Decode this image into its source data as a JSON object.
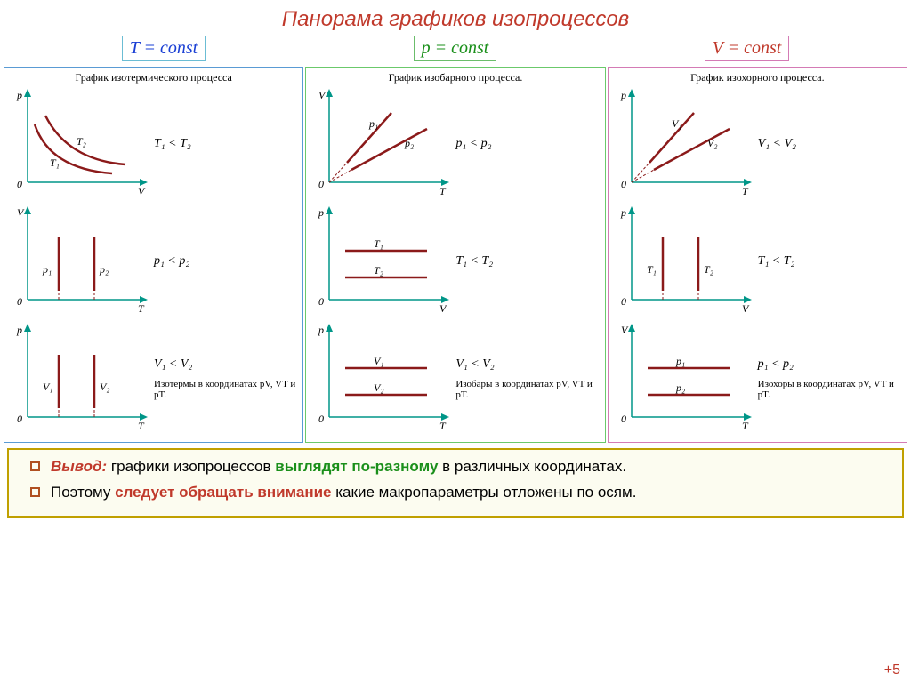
{
  "title": "Панорама графиков изопроцессов",
  "formulas": [
    {
      "text": "T = const",
      "color": "#1a3fd4",
      "border": "#6bbdd4"
    },
    {
      "text": "p = const",
      "color": "#1a8f1a",
      "border": "#6bbd6b"
    },
    {
      "text": "V = const",
      "color": "#c0392b",
      "border": "#d47bb5"
    }
  ],
  "panels": [
    {
      "border": "#5a9bd4",
      "title": "График изотермического процесса",
      "graphs": [
        {
          "y": "p",
          "x": "V",
          "type": "hyperbola",
          "labels": [
            "T₁",
            "T₂"
          ],
          "cond": "T₁ < T₂"
        },
        {
          "y": "V",
          "x": "T",
          "type": "vertical",
          "labels": [
            "p₁",
            "p₂"
          ],
          "cond": "p₁ < p₂"
        },
        {
          "y": "p",
          "x": "T",
          "type": "vertical",
          "labels": [
            "V₁",
            "V₂"
          ],
          "cond": "V₁ < V₂"
        }
      ],
      "caption": "Изотермы в координатах pV, VT и pT."
    },
    {
      "border": "#6bc96b",
      "title": "График изобарного процесса.",
      "graphs": [
        {
          "y": "V",
          "x": "T",
          "type": "rays",
          "labels": [
            "p₁",
            "p₂"
          ],
          "cond": "p₁ < p₂"
        },
        {
          "y": "p",
          "x": "V",
          "type": "horizontal",
          "labels": [
            "T₁",
            "T₂"
          ],
          "cond": "T₁ < T₂"
        },
        {
          "y": "p",
          "x": "T",
          "type": "horizontal",
          "labels": [
            "V₁",
            "V₂"
          ],
          "cond": "V₁ < V₂"
        }
      ],
      "caption": "Изобары в координатах pV, VT и pT."
    },
    {
      "border": "#d47bb5",
      "title": "График изохорного процесса.",
      "graphs": [
        {
          "y": "p",
          "x": "T",
          "type": "rays",
          "labels": [
            "V₁",
            "V₂"
          ],
          "cond": "V₁ < V₂"
        },
        {
          "y": "p",
          "x": "V",
          "type": "vertical",
          "labels": [
            "T₁",
            "T₂"
          ],
          "cond": "T₁ < T₂"
        },
        {
          "y": "V",
          "x": "T",
          "type": "horizontal",
          "labels": [
            "p₁",
            "p₂"
          ],
          "cond": "p₁ < p₂"
        }
      ],
      "caption": "Изохоры в координатах pV, VT и pT."
    }
  ],
  "conclusion": {
    "line1": {
      "pre": "Вывод:",
      "mid": " графики изопроцессов ",
      "em": "выглядят по-разному",
      "post": " в различных координатах."
    },
    "line2": {
      "pre": "Поэтому ",
      "em": "следует обращать внимание",
      "post": " какие макропараметры отложены по осям."
    }
  },
  "footer": "+5",
  "colors": {
    "axis": "#009688",
    "curve": "#8b1a1a"
  }
}
